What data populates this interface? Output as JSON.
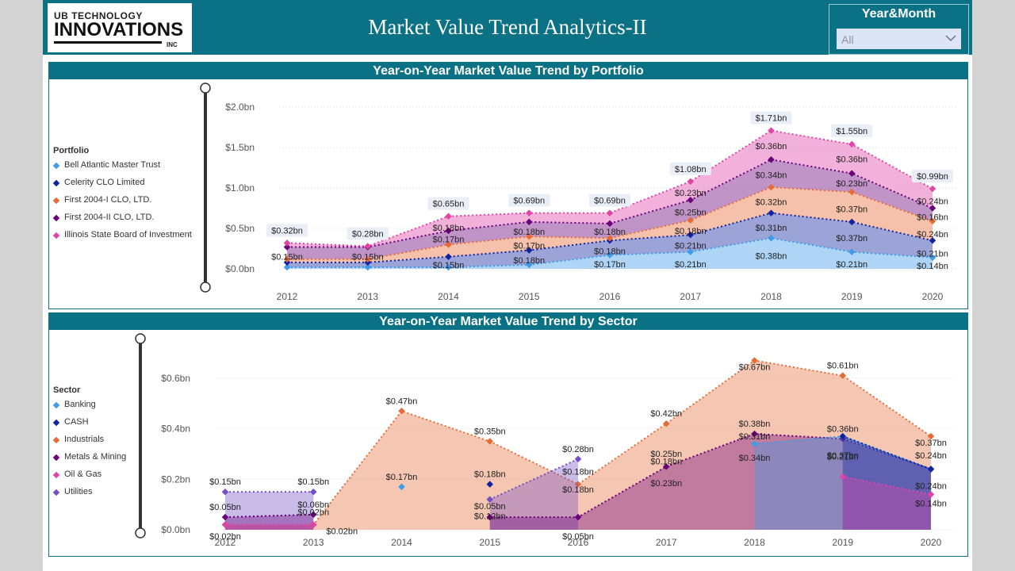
{
  "header": {
    "logo_line1": "UB TECHNOLOGY",
    "logo_line2": "INNOVATIONS",
    "logo_line3": "INC",
    "title": "Market Value Trend Analytics-II"
  },
  "slicer": {
    "label": "Year&Month",
    "value": "All",
    "icon": "chevron-down-icon"
  },
  "colors": {
    "header": "#0b7285",
    "portfolio": [
      "#3d9be9",
      "#12239e",
      "#e66c37",
      "#6b007b",
      "#e044a7"
    ],
    "sector": [
      "#3d9be9",
      "#12239e",
      "#e66c37",
      "#6b007b",
      "#e044a7",
      "#744ec2"
    ]
  },
  "chart_data": [
    {
      "type": "area",
      "title": "Year-on-Year Market Value Trend by Portfolio",
      "legend_title": "Portfolio",
      "legend_position": "left",
      "stacked": true,
      "x": [
        "2012",
        "2013",
        "2014",
        "2015",
        "2016",
        "2017",
        "2018",
        "2019",
        "2020"
      ],
      "y_ticks": [
        "$0.0bn",
        "$0.5bn",
        "$1.0bn",
        "$1.5bn",
        "$2.0bn"
      ],
      "ylim": [
        0,
        2.0
      ],
      "series": [
        {
          "name": "Bell Atlantic Master Trust",
          "values": [
            0.02,
            0.02,
            0.02,
            0.05,
            0.17,
            0.21,
            0.38,
            0.21,
            0.14
          ]
        },
        {
          "name": "Celerity CLO Limited",
          "values": [
            0.06,
            0.06,
            0.13,
            0.18,
            0.18,
            0.21,
            0.31,
            0.37,
            0.21
          ]
        },
        {
          "name": "First 2004-I CLO, LTD.",
          "values": [
            0.04,
            0.04,
            0.15,
            0.17,
            0.03,
            0.18,
            0.32,
            0.37,
            0.24
          ]
        },
        {
          "name": "First 2004-II CLO, LTD.",
          "values": [
            0.15,
            0.15,
            0.17,
            0.18,
            0.18,
            0.25,
            0.34,
            0.23,
            0.16
          ]
        },
        {
          "name": "Illinois State Board of Investment",
          "values": [
            0.05,
            0.01,
            0.18,
            0.11,
            0.13,
            0.23,
            0.36,
            0.36,
            0.24
          ]
        }
      ],
      "totals": [
        0.32,
        0.28,
        0.65,
        0.69,
        0.69,
        1.08,
        1.71,
        1.55,
        0.99
      ],
      "labels": [
        {
          "x": "2012",
          "v": 0.15,
          "t": "$0.15bn"
        },
        {
          "x": "2013",
          "v": 0.15,
          "t": "$0.15bn"
        },
        {
          "x": "2014",
          "v": 0.05,
          "t": "$0.15bn"
        },
        {
          "x": "2014",
          "v": 0.37,
          "t": "$0.17bn"
        },
        {
          "x": "2014",
          "v": 0.51,
          "t": "$0.18bn"
        },
        {
          "x": "2015",
          "v": 0.11,
          "t": "$0.18bn"
        },
        {
          "x": "2015",
          "v": 0.29,
          "t": "$0.17bn"
        },
        {
          "x": "2015",
          "v": 0.46,
          "t": "$0.18bn"
        },
        {
          "x": "2016",
          "v": 0.06,
          "t": "$0.17bn"
        },
        {
          "x": "2016",
          "v": 0.22,
          "t": "$0.18bn"
        },
        {
          "x": "2016",
          "v": 0.46,
          "t": "$0.18bn"
        },
        {
          "x": "2017",
          "v": 0.06,
          "t": "$0.21bn"
        },
        {
          "x": "2017",
          "v": 0.29,
          "t": "$0.21bn"
        },
        {
          "x": "2017",
          "v": 0.47,
          "t": "$0.18bn"
        },
        {
          "x": "2017",
          "v": 0.7,
          "t": "$0.25bn"
        },
        {
          "x": "2017",
          "v": 0.94,
          "t": "$0.23bn"
        },
        {
          "x": "2018",
          "v": 0.16,
          "t": "$0.38bn"
        },
        {
          "x": "2018",
          "v": 0.51,
          "t": "$0.31bn"
        },
        {
          "x": "2018",
          "v": 0.83,
          "t": "$0.32bn"
        },
        {
          "x": "2018",
          "v": 1.16,
          "t": "$0.34bn"
        },
        {
          "x": "2018",
          "v": 1.52,
          "t": "$0.36bn"
        },
        {
          "x": "2019",
          "v": 0.06,
          "t": "$0.21bn"
        },
        {
          "x": "2019",
          "v": 0.38,
          "t": "$0.37bn"
        },
        {
          "x": "2019",
          "v": 0.74,
          "t": "$0.37bn"
        },
        {
          "x": "2019",
          "v": 1.06,
          "t": "$0.23bn"
        },
        {
          "x": "2019",
          "v": 1.36,
          "t": "$0.36bn"
        },
        {
          "x": "2020",
          "v": 0.04,
          "t": "$0.14bn"
        },
        {
          "x": "2020",
          "v": 0.19,
          "t": "$0.21bn"
        },
        {
          "x": "2020",
          "v": 0.43,
          "t": "$0.24bn"
        },
        {
          "x": "2020",
          "v": 0.64,
          "t": "$0.16bn"
        },
        {
          "x": "2020",
          "v": 0.84,
          "t": "$0.24bn"
        }
      ]
    },
    {
      "type": "area",
      "title": "Year-on-Year Market Value Trend by Sector",
      "legend_title": "Sector",
      "legend_position": "left",
      "stacked": false,
      "x": [
        "2012",
        "2013",
        "2014",
        "2015",
        "2016",
        "2017",
        "2018",
        "2019",
        "2020"
      ],
      "y_ticks": [
        "$0.0bn",
        "$0.2bn",
        "$0.4bn",
        "$0.6bn"
      ],
      "ylim": [
        0,
        0.7
      ],
      "series": [
        {
          "name": "Banking",
          "values": [
            null,
            null,
            0.17,
            null,
            null,
            null,
            0.34,
            0.37,
            0.24
          ]
        },
        {
          "name": "CASH",
          "values": [
            null,
            null,
            null,
            0.18,
            null,
            null,
            null,
            0.37,
            0.24
          ]
        },
        {
          "name": "Industrials",
          "values": [
            0.02,
            0.02,
            0.47,
            0.35,
            0.18,
            0.42,
            0.67,
            0.61,
            0.37
          ]
        },
        {
          "name": "Metals & Mining",
          "values": [
            0.05,
            0.06,
            null,
            0.05,
            0.05,
            0.25,
            0.38,
            0.36,
            0.24
          ]
        },
        {
          "name": "Oil & Gas",
          "values": [
            0.02,
            0.02,
            null,
            null,
            null,
            null,
            null,
            0.21,
            0.14
          ]
        },
        {
          "name": "Utilities",
          "values": [
            0.15,
            0.15,
            null,
            0.12,
            0.28,
            null,
            null,
            null,
            null
          ]
        }
      ],
      "labels": [
        {
          "x": "2012",
          "v": 0.15,
          "t": "$0.15bn",
          "above": true
        },
        {
          "x": "2012",
          "v": 0.05,
          "t": "$0.05bn",
          "above": true
        },
        {
          "x": "2012",
          "v": 0.0,
          "t": "$0.02bn",
          "above": false
        },
        {
          "x": "2013",
          "v": 0.15,
          "t": "$0.15bn",
          "above": true
        },
        {
          "x": "2013",
          "v": 0.06,
          "t": "$0.06bn",
          "above": true
        },
        {
          "x": "2013",
          "v": 0.03,
          "t": "$0.02bn",
          "above": true
        },
        {
          "x": "2013",
          "v": 0.02,
          "t": "$0.02bn",
          "above": false,
          "dx": 36
        },
        {
          "x": "2014",
          "v": 0.47,
          "t": "$0.47bn",
          "above": true
        },
        {
          "x": "2014",
          "v": 0.17,
          "t": "$0.17bn",
          "above": true
        },
        {
          "x": "2015",
          "v": 0.35,
          "t": "$0.35bn",
          "above": true
        },
        {
          "x": "2015",
          "v": 0.18,
          "t": "$0.18bn",
          "above": true
        },
        {
          "x": "2015",
          "v": 0.12,
          "t": "$0.05bn",
          "above": false
        },
        {
          "x": "2015",
          "v": 0.08,
          "t": "$0.12bn",
          "above": false
        },
        {
          "x": "2016",
          "v": 0.28,
          "t": "$0.28bn",
          "above": true
        },
        {
          "x": "2016",
          "v": 0.19,
          "t": "$0.18bn",
          "above": true
        },
        {
          "x": "2016",
          "v": 0.12,
          "t": "$0.18bn",
          "above": true
        },
        {
          "x": "2016",
          "v": 0.0,
          "t": "$0.05bn",
          "above": false
        },
        {
          "x": "2017",
          "v": 0.42,
          "t": "$0.42bn",
          "above": true
        },
        {
          "x": "2017",
          "v": 0.26,
          "t": "$0.25bn",
          "above": true
        },
        {
          "x": "2017",
          "v": 0.23,
          "t": "$0.18bn",
          "above": true
        },
        {
          "x": "2017",
          "v": 0.21,
          "t": "$0.23bn",
          "above": false
        },
        {
          "x": "2018",
          "v": 0.67,
          "t": "$0.67bn",
          "above": false
        },
        {
          "x": "2018",
          "v": 0.38,
          "t": "$0.38bn",
          "above": true
        },
        {
          "x": "2018",
          "v": 0.33,
          "t": "$0.31bn",
          "above": true
        },
        {
          "x": "2018",
          "v": 0.31,
          "t": "$0.34bn",
          "above": false
        },
        {
          "x": "2019",
          "v": 0.61,
          "t": "$0.61bn",
          "above": true
        },
        {
          "x": "2019",
          "v": 0.36,
          "t": "$0.36bn",
          "above": true
        },
        {
          "x": "2019",
          "v": 0.32,
          "t": "$0.37bn",
          "above": false
        },
        {
          "x": "2019",
          "v": 0.25,
          "t": "$0.21bn",
          "above": true
        },
        {
          "x": "2020",
          "v": 0.37,
          "t": "$0.37bn",
          "above": false
        },
        {
          "x": "2020",
          "v": 0.32,
          "t": "$0.24bn",
          "above": false
        },
        {
          "x": "2020",
          "v": 0.2,
          "t": "$0.24bn",
          "above": false
        },
        {
          "x": "2020",
          "v": 0.13,
          "t": "$0.14bn",
          "above": false
        }
      ]
    }
  ]
}
